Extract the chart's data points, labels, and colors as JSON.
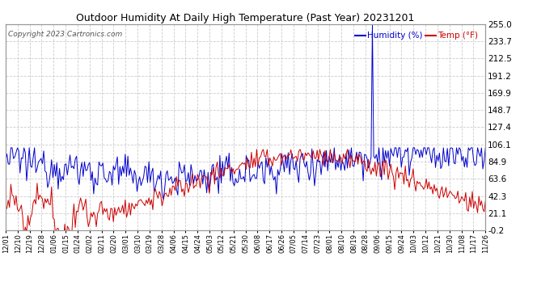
{
  "title": "Outdoor Humidity At Daily High Temperature (Past Year) 20231201",
  "copyright": "Copyright 2023 Cartronics.com",
  "legend_humidity": "Humidity (%)",
  "legend_temp": "Temp (°F)",
  "legend_humidity_color": "#0000cc",
  "legend_temp_color": "#cc0000",
  "yticks": [
    -0.2,
    21.1,
    42.3,
    63.6,
    84.9,
    106.1,
    127.4,
    148.7,
    169.9,
    191.2,
    212.5,
    233.7,
    255.0
  ],
  "ylim": [
    -0.2,
    255.0
  ],
  "xtick_labels": [
    "12/01",
    "12/10",
    "12/19",
    "12/28",
    "01/06",
    "01/15",
    "01/24",
    "02/02",
    "02/11",
    "02/20",
    "03/01",
    "03/10",
    "03/19",
    "03/28",
    "04/06",
    "04/15",
    "04/24",
    "05/03",
    "05/12",
    "05/21",
    "05/30",
    "06/08",
    "06/17",
    "06/26",
    "07/05",
    "07/14",
    "07/23",
    "08/01",
    "08/10",
    "08/19",
    "08/28",
    "09/06",
    "09/15",
    "09/24",
    "10/03",
    "10/12",
    "10/21",
    "10/30",
    "11/08",
    "11/17",
    "11/26"
  ],
  "background_color": "#ffffff",
  "plot_bg_color": "#ffffff",
  "grid_color": "#cccccc",
  "line_color_humidity": "#0000cc",
  "line_color_temp": "#cc0000",
  "n_points": 366,
  "spike_idx": 279
}
